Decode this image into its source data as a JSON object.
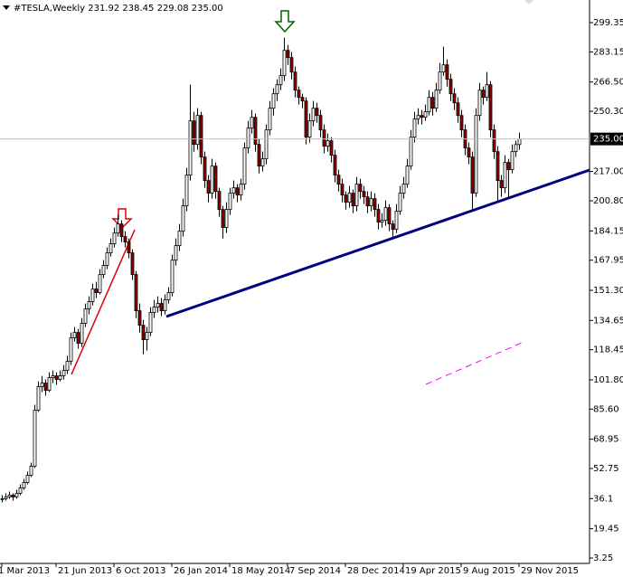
{
  "chart_data": {
    "type": "candlestick",
    "title": "#TESLA,Weekly  231.92 238.45 229.08 235.00",
    "up_color": "#ffffff",
    "down_color": "#8b0000",
    "wick_color": "#000000",
    "ylim": [
      0.25,
      311.85
    ],
    "yticks": [
      299.35,
      283.15,
      {
        "value": 266.5,
        "label": "266.50"
      },
      {
        "value": 250.3,
        "label": "250.30"
      },
      {
        "value": 217,
        "label": "217.00"
      },
      {
        "value": 200.8,
        "label": "200.80"
      },
      184.15,
      167.95,
      {
        "value": 151.3,
        "label": "151.30"
      },
      134.65,
      118.45,
      {
        "value": 101.8,
        "label": "101.80"
      },
      {
        "value": 85.6,
        "label": "85.60"
      },
      68.95,
      52.75,
      36.1,
      19.45,
      3.25
    ],
    "last_price": {
      "value": 235,
      "label": "235.00"
    },
    "categories": [
      "1 Mar 2013",
      null,
      null,
      null,
      null,
      null,
      null,
      null,
      null,
      null,
      null,
      null,
      null,
      null,
      null,
      "21 Jun 2013",
      null,
      null,
      null,
      null,
      null,
      null,
      null,
      null,
      null,
      null,
      null,
      null,
      null,
      null,
      null,
      "6 Oct 2013",
      null,
      null,
      null,
      null,
      null,
      null,
      null,
      null,
      null,
      null,
      null,
      null,
      null,
      null,
      null,
      "26 Jan 2014",
      null,
      null,
      null,
      null,
      null,
      null,
      null,
      null,
      null,
      null,
      null,
      null,
      null,
      null,
      null,
      "18 May 2014",
      null,
      null,
      null,
      null,
      null,
      null,
      null,
      null,
      null,
      null,
      null,
      null,
      null,
      null,
      null,
      "7 Sep 2014",
      null,
      null,
      null,
      null,
      null,
      null,
      null,
      null,
      null,
      null,
      null,
      null,
      null,
      null,
      null,
      "28 Dec 2014",
      null,
      null,
      null,
      null,
      null,
      null,
      null,
      null,
      null,
      null,
      null,
      null,
      null,
      null,
      null,
      "19 Apr 2015",
      null,
      null,
      null,
      null,
      null,
      null,
      null,
      null,
      null,
      null,
      null,
      null,
      null,
      null,
      null,
      "9 Aug 2015",
      null,
      null,
      null,
      null,
      null,
      null,
      null,
      null,
      null,
      null,
      null,
      null,
      null,
      null,
      null,
      "29 Nov 2015"
    ],
    "ohlc": [
      [
        36,
        38,
        34,
        36
      ],
      [
        36,
        39,
        35,
        37
      ],
      [
        37,
        40,
        36,
        38
      ],
      [
        38,
        39,
        35,
        37
      ],
      [
        37,
        41,
        36,
        39
      ],
      [
        39,
        44,
        38,
        42
      ],
      [
        42,
        47,
        41,
        45
      ],
      [
        45,
        51,
        44,
        49
      ],
      [
        49,
        56,
        48,
        54
      ],
      [
        54,
        88,
        53,
        85
      ],
      [
        85,
        101,
        84,
        98
      ],
      [
        98,
        104,
        95,
        100
      ],
      [
        100,
        102,
        93,
        96
      ],
      [
        96,
        106,
        95,
        103
      ],
      [
        103,
        107,
        100,
        104
      ],
      [
        104,
        106,
        99,
        102
      ],
      [
        102,
        107,
        101,
        104
      ],
      [
        104,
        110,
        102,
        107
      ],
      [
        107,
        115,
        105,
        112
      ],
      [
        112,
        128,
        110,
        125
      ],
      [
        125,
        131,
        123,
        128
      ],
      [
        128,
        130,
        119,
        122
      ],
      [
        122,
        136,
        120,
        133
      ],
      [
        133,
        144,
        131,
        141
      ],
      [
        141,
        148,
        138,
        145
      ],
      [
        145,
        155,
        143,
        152
      ],
      [
        152,
        156,
        147,
        150
      ],
      [
        150,
        163,
        149,
        160
      ],
      [
        160,
        168,
        158,
        165
      ],
      [
        165,
        175,
        163,
        172
      ],
      [
        172,
        180,
        170,
        177
      ],
      [
        177,
        186,
        175,
        183
      ],
      [
        183,
        193,
        181,
        188
      ],
      [
        188,
        190,
        178,
        181
      ],
      [
        181,
        184,
        175,
        178
      ],
      [
        178,
        180,
        169,
        172
      ],
      [
        172,
        174,
        157,
        160
      ],
      [
        160,
        162,
        136,
        140
      ],
      [
        140,
        144,
        128,
        132
      ],
      [
        132,
        135,
        116,
        124
      ],
      [
        124,
        131,
        118,
        128
      ],
      [
        128,
        142,
        126,
        139
      ],
      [
        139,
        146,
        136,
        142
      ],
      [
        142,
        148,
        139,
        144
      ],
      [
        144,
        147,
        137,
        140
      ],
      [
        140,
        149,
        138,
        146
      ],
      [
        146,
        153,
        144,
        150
      ],
      [
        150,
        171,
        148,
        168
      ],
      [
        168,
        180,
        165,
        176
      ],
      [
        176,
        188,
        173,
        184
      ],
      [
        184,
        202,
        181,
        198
      ],
      [
        198,
        219,
        195,
        215
      ],
      [
        215,
        265,
        212,
        245
      ],
      [
        245,
        250,
        228,
        232
      ],
      [
        232,
        252,
        229,
        248
      ],
      [
        248,
        250,
        221,
        225
      ],
      [
        225,
        228,
        208,
        212
      ],
      [
        212,
        215,
        200,
        205
      ],
      [
        205,
        224,
        202,
        220
      ],
      [
        220,
        222,
        202,
        206
      ],
      [
        206,
        208,
        192,
        196
      ],
      [
        196,
        198,
        180,
        186
      ],
      [
        186,
        200,
        183,
        196
      ],
      [
        196,
        208,
        193,
        205
      ],
      [
        205,
        212,
        202,
        208
      ],
      [
        208,
        210,
        200,
        204
      ],
      [
        204,
        213,
        201,
        210
      ],
      [
        210,
        233,
        207,
        230
      ],
      [
        230,
        245,
        227,
        241
      ],
      [
        241,
        251,
        238,
        247
      ],
      [
        247,
        249,
        228,
        232
      ],
      [
        232,
        235,
        216,
        220
      ],
      [
        220,
        228,
        217,
        224
      ],
      [
        224,
        243,
        221,
        240
      ],
      [
        240,
        256,
        237,
        252
      ],
      [
        252,
        263,
        248,
        260
      ],
      [
        260,
        268,
        256,
        265
      ],
      [
        265,
        274,
        262,
        270
      ],
      [
        270,
        291,
        267,
        284
      ],
      [
        284,
        287,
        276,
        280
      ],
      [
        280,
        283,
        268,
        272
      ],
      [
        272,
        275,
        258,
        262
      ],
      [
        262,
        264,
        254,
        258
      ],
      [
        258,
        260,
        252,
        256
      ],
      [
        256,
        258,
        232,
        236
      ],
      [
        236,
        249,
        233,
        245
      ],
      [
        245,
        256,
        242,
        252
      ],
      [
        252,
        255,
        244,
        248
      ],
      [
        248,
        251,
        236,
        240
      ],
      [
        240,
        243,
        227,
        231
      ],
      [
        231,
        238,
        228,
        234
      ],
      [
        234,
        236,
        222,
        226
      ],
      [
        226,
        229,
        211,
        215
      ],
      [
        215,
        218,
        206,
        210
      ],
      [
        210,
        213,
        200,
        204
      ],
      [
        204,
        206,
        196,
        200
      ],
      [
        200,
        209,
        197,
        205
      ],
      [
        205,
        207,
        194,
        198
      ],
      [
        198,
        214,
        195,
        210
      ],
      [
        210,
        213,
        202,
        206
      ],
      [
        206,
        209,
        199,
        203
      ],
      [
        203,
        206,
        194,
        198
      ],
      [
        198,
        206,
        195,
        202
      ],
      [
        202,
        205,
        192,
        196
      ],
      [
        196,
        199,
        185,
        189
      ],
      [
        189,
        194,
        186,
        190
      ],
      [
        190,
        201,
        187,
        197
      ],
      [
        197,
        199,
        184,
        188
      ],
      [
        188,
        190,
        181,
        185
      ],
      [
        185,
        199,
        183,
        195
      ],
      [
        195,
        209,
        193,
        205
      ],
      [
        205,
        214,
        202,
        210
      ],
      [
        210,
        224,
        208,
        220
      ],
      [
        220,
        240,
        218,
        236
      ],
      [
        236,
        250,
        233,
        246
      ],
      [
        246,
        252,
        243,
        248
      ],
      [
        248,
        251,
        243,
        247
      ],
      [
        247,
        254,
        245,
        250
      ],
      [
        250,
        262,
        248,
        258
      ],
      [
        258,
        261,
        248,
        252
      ],
      [
        252,
        266,
        250,
        262
      ],
      [
        262,
        277,
        260,
        272
      ],
      [
        272,
        286,
        270,
        276
      ],
      [
        276,
        279,
        264,
        268
      ],
      [
        268,
        271,
        256,
        260
      ],
      [
        260,
        263,
        251,
        255
      ],
      [
        255,
        258,
        244,
        248
      ],
      [
        248,
        251,
        236,
        240
      ],
      [
        240,
        243,
        226,
        230
      ],
      [
        230,
        233,
        221,
        225
      ],
      [
        225,
        228,
        195,
        205
      ],
      [
        205,
        252,
        203,
        248
      ],
      [
        248,
        266,
        245,
        262
      ],
      [
        262,
        264,
        254,
        258
      ],
      [
        258,
        272,
        256,
        265
      ],
      [
        265,
        267,
        236,
        240
      ],
      [
        240,
        243,
        224,
        228
      ],
      [
        228,
        231,
        201,
        212
      ],
      [
        212,
        215,
        203,
        208
      ],
      [
        208,
        226,
        205,
        222
      ],
      [
        222,
        224,
        202,
        218
      ],
      [
        218,
        232,
        216,
        228
      ],
      [
        228,
        234,
        225,
        231.92
      ],
      [
        231.92,
        238.45,
        229.08,
        235
      ]
    ]
  }
}
